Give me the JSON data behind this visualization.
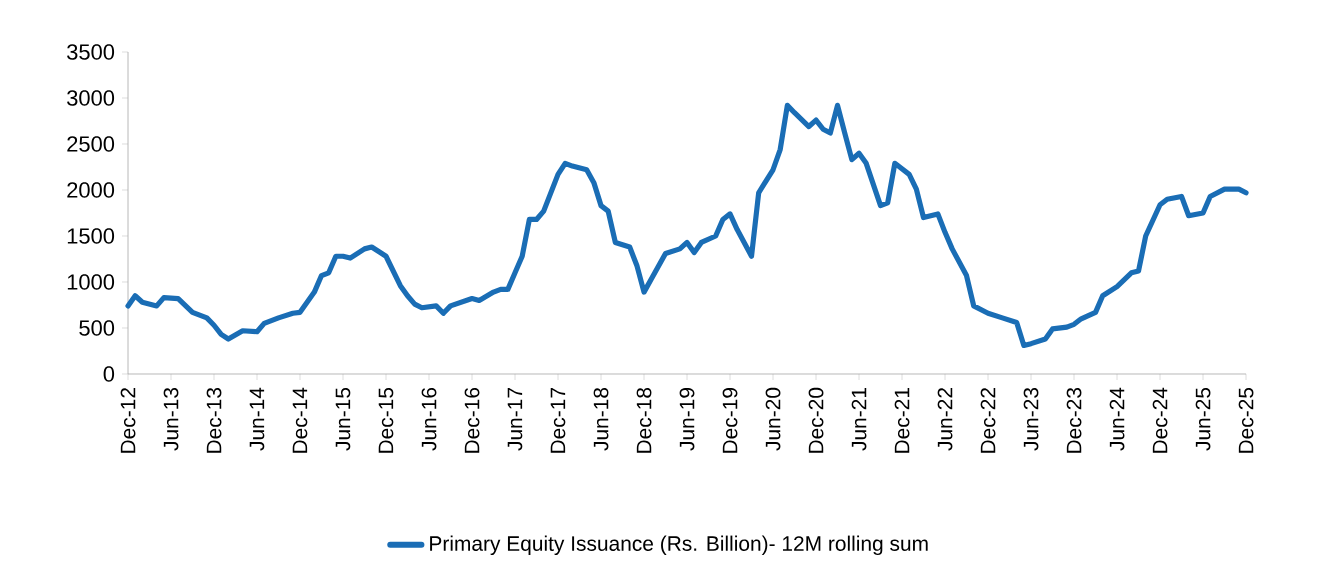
{
  "chart_data": {
    "type": "line",
    "x": [
      "2012-12",
      "2013-01",
      "2013-02",
      "2013-04",
      "2013-05",
      "2013-07",
      "2013-09",
      "2013-11",
      "2013-12",
      "2014-01",
      "2014-02",
      "2014-04",
      "2014-06",
      "2014-07",
      "2014-09",
      "2014-11",
      "2014-12",
      "2015-02",
      "2015-03",
      "2015-04",
      "2015-05",
      "2015-06",
      "2015-07",
      "2015-09",
      "2015-10",
      "2015-12",
      "2016-02",
      "2016-03",
      "2016-04",
      "2016-05",
      "2016-07",
      "2016-08",
      "2016-09",
      "2016-12",
      "2017-01",
      "2017-03",
      "2017-04",
      "2017-05",
      "2017-06",
      "2017-07",
      "2017-08",
      "2017-09",
      "2017-10",
      "2017-12",
      "2018-01",
      "2018-02",
      "2018-04",
      "2018-05",
      "2018-06",
      "2018-07",
      "2018-08",
      "2018-10",
      "2018-11",
      "2018-12",
      "2019-01",
      "2019-03",
      "2019-05",
      "2019-06",
      "2019-07",
      "2019-08",
      "2019-10",
      "2019-11",
      "2019-12",
      "2020-01",
      "2020-03",
      "2020-04",
      "2020-06",
      "2020-07",
      "2020-08",
      "2020-09",
      "2020-11",
      "2020-12",
      "2021-01",
      "2021-02",
      "2021-03",
      "2021-04",
      "2021-05",
      "2021-06",
      "2021-07",
      "2021-09",
      "2021-10",
      "2021-11",
      "2022-01",
      "2022-02",
      "2022-03",
      "2022-05",
      "2022-06",
      "2022-07",
      "2022-09",
      "2022-10",
      "2022-12",
      "2023-02",
      "2023-04",
      "2023-05",
      "2023-06",
      "2023-08",
      "2023-09",
      "2023-11",
      "2023-12",
      "2024-01",
      "2024-03",
      "2024-04",
      "2024-06",
      "2024-08",
      "2024-09",
      "2024-10",
      "2024-12",
      "2025-01",
      "2025-03",
      "2025-04",
      "2025-06",
      "2025-07",
      "2025-09",
      "2025-11",
      "2025-12"
    ],
    "series": [
      {
        "name": "Primary Equity Issuance (Rs. Billion)- 12M rolling sum",
        "color": "#1a6db5",
        "values": [
          740,
          850,
          780,
          740,
          830,
          820,
          670,
          610,
          530,
          430,
          380,
          470,
          460,
          550,
          610,
          660,
          670,
          890,
          1070,
          1100,
          1280,
          1280,
          1260,
          1360,
          1380,
          1280,
          960,
          850,
          760,
          720,
          740,
          660,
          740,
          820,
          800,
          890,
          920,
          920,
          1100,
          1280,
          1680,
          1680,
          1770,
          2170,
          2290,
          2260,
          2220,
          2080,
          1830,
          1770,
          1430,
          1380,
          1180,
          890,
          1030,
          1310,
          1360,
          1430,
          1320,
          1430,
          1500,
          1680,
          1740,
          1570,
          1280,
          1970,
          2220,
          2440,
          2920,
          2840,
          2690,
          2760,
          2660,
          2620,
          2920,
          2620,
          2330,
          2400,
          2290,
          1830,
          1860,
          2290,
          2170,
          2010,
          1700,
          1740,
          1540,
          1360,
          1070,
          740,
          660,
          610,
          560,
          310,
          330,
          380,
          490,
          510,
          540,
          600,
          670,
          850,
          950,
          1100,
          1120,
          1500,
          1840,
          1900,
          1930,
          1720,
          1750,
          1930,
          2010,
          2010,
          1970
        ]
      }
    ],
    "xlim": [
      "2012-12",
      "2025-12"
    ],
    "xticks": [
      {
        "value": "2012-12",
        "label": "Dec-12"
      },
      {
        "value": "2013-06",
        "label": "Jun-13"
      },
      {
        "value": "2013-12",
        "label": "Dec-13"
      },
      {
        "value": "2014-06",
        "label": "Jun-14"
      },
      {
        "value": "2014-12",
        "label": "Dec-14"
      },
      {
        "value": "2015-06",
        "label": "Jun-15"
      },
      {
        "value": "2015-12",
        "label": "Dec-15"
      },
      {
        "value": "2016-06",
        "label": "Jun-16"
      },
      {
        "value": "2016-12",
        "label": "Dec-16"
      },
      {
        "value": "2017-06",
        "label": "Jun-17"
      },
      {
        "value": "2017-12",
        "label": "Dec-17"
      },
      {
        "value": "2018-06",
        "label": "Jun-18"
      },
      {
        "value": "2018-12",
        "label": "Dec-18"
      },
      {
        "value": "2019-06",
        "label": "Jun-19"
      },
      {
        "value": "2019-12",
        "label": "Dec-19"
      },
      {
        "value": "2020-06",
        "label": "Jun-20"
      },
      {
        "value": "2020-12",
        "label": "Dec-20"
      },
      {
        "value": "2021-06",
        "label": "Jun-21"
      },
      {
        "value": "2021-12",
        "label": "Dec-21"
      },
      {
        "value": "2022-06",
        "label": "Jun-22"
      },
      {
        "value": "2022-12",
        "label": "Dec-22"
      },
      {
        "value": "2023-06",
        "label": "Jun-23"
      },
      {
        "value": "2023-12",
        "label": "Dec-23"
      },
      {
        "value": "2024-06",
        "label": "Jun-24"
      },
      {
        "value": "2024-12",
        "label": "Dec-24"
      },
      {
        "value": "2025-06",
        "label": "Jun-25"
      },
      {
        "value": "2025-12",
        "label": "Dec-25"
      }
    ],
    "ylim": [
      0,
      3500
    ],
    "yticks": [
      0,
      500,
      1000,
      1500,
      2000,
      2500,
      3000,
      3500
    ],
    "grid": false,
    "legend": "bottom",
    "marker": "none",
    "line_style": "solid"
  }
}
